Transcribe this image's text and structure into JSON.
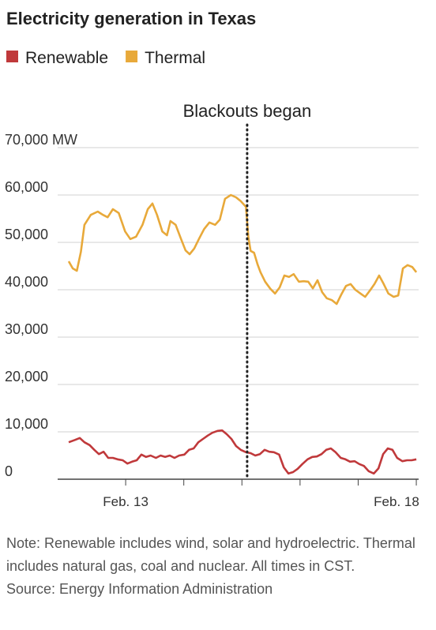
{
  "chart_data": {
    "type": "line",
    "title": "Electricity generation in Texas",
    "note": "Note: Renewable includes wind, solar and hydroelectric. Thermal includes natural gas, coal and nuclear. All times in CST.",
    "source": "Source: Energy Information Administration",
    "annotation": {
      "text": "Blackouts began",
      "x": 15.09
    },
    "xlim": [
      11.83,
      18.04
    ],
    "xticks": [
      {
        "value": 13,
        "label": "Feb. 13"
      },
      {
        "value": 18,
        "label": "Feb. 18"
      }
    ],
    "minor_xticks": [
      14,
      15,
      16,
      17
    ],
    "ylim": [
      0,
      70000
    ],
    "yticks": [
      {
        "value": 0,
        "label": "0"
      },
      {
        "value": 10000,
        "label": "10,000"
      },
      {
        "value": 20000,
        "label": "20,000"
      },
      {
        "value": 30000,
        "label": "30,000"
      },
      {
        "value": 40000,
        "label": "40,000"
      },
      {
        "value": 50000,
        "label": "50,000"
      },
      {
        "value": 60000,
        "label": "60,000"
      },
      {
        "value": 70000,
        "label": "70,000 MW"
      }
    ],
    "grid": true,
    "series": [
      {
        "name": "Renewable",
        "color": "#c0393b",
        "x": [
          12.02,
          12.13,
          12.21,
          12.29,
          12.38,
          12.46,
          12.54,
          12.62,
          12.7,
          12.78,
          12.86,
          12.95,
          13.03,
          13.11,
          13.19,
          13.27,
          13.35,
          13.43,
          13.52,
          13.6,
          13.68,
          13.76,
          13.84,
          13.92,
          14.01,
          14.09,
          14.17,
          14.25,
          14.33,
          14.41,
          14.49,
          14.58,
          14.66,
          14.74,
          14.82,
          14.9,
          14.98,
          15.07,
          15.15,
          15.23,
          15.31,
          15.39,
          15.47,
          15.55,
          15.64,
          15.72,
          15.8,
          15.88,
          15.96,
          16.04,
          16.13,
          16.21,
          16.29,
          16.37,
          16.45,
          16.53,
          16.61,
          16.7,
          16.78,
          16.86,
          16.94,
          17.02,
          17.1,
          17.18,
          17.27,
          17.35,
          17.43,
          17.51,
          17.59,
          17.67,
          17.76,
          17.84,
          17.92,
          18.0
        ],
        "values": [
          7800,
          8300,
          8700,
          7800,
          7200,
          6200,
          5300,
          5800,
          4500,
          4500,
          4200,
          4000,
          3300,
          3700,
          4000,
          5200,
          4700,
          5000,
          4500,
          5000,
          4700,
          5000,
          4500,
          5000,
          5200,
          6200,
          6500,
          7800,
          8500,
          9200,
          9800,
          10200,
          10300,
          9500,
          8500,
          7000,
          6200,
          5700,
          5500,
          5000,
          5300,
          6200,
          5800,
          5700,
          5200,
          2500,
          1200,
          1500,
          2200,
          3200,
          4200,
          4700,
          4800,
          5300,
          6200,
          6500,
          5700,
          4500,
          4200,
          3700,
          3800,
          3200,
          2800,
          1700,
          1200,
          2300,
          5300,
          6500,
          6200,
          4500,
          3800,
          4000,
          4000,
          4200
        ]
      },
      {
        "name": "Thermal",
        "color": "#e8a93a",
        "x": [
          12.02,
          12.09,
          12.16,
          12.23,
          12.29,
          12.4,
          12.52,
          12.61,
          12.69,
          12.78,
          12.88,
          12.99,
          13.08,
          13.18,
          13.29,
          13.38,
          13.46,
          13.54,
          13.63,
          13.71,
          13.77,
          13.86,
          13.95,
          14.03,
          14.1,
          14.18,
          14.26,
          14.35,
          14.44,
          14.54,
          14.62,
          14.71,
          14.81,
          14.9,
          14.98,
          15.07,
          15.11,
          15.15,
          15.21,
          15.27,
          15.32,
          15.4,
          15.49,
          15.57,
          15.65,
          15.73,
          15.81,
          15.89,
          15.98,
          16.06,
          16.14,
          16.22,
          16.3,
          16.38,
          16.46,
          16.55,
          16.63,
          16.71,
          16.79,
          16.87,
          16.95,
          17.04,
          17.12,
          17.2,
          17.28,
          17.36,
          17.44,
          17.52,
          17.61,
          17.69,
          17.77,
          17.85,
          17.93,
          18.0
        ],
        "values": [
          46000,
          44500,
          44000,
          48000,
          53700,
          55800,
          56500,
          55800,
          55300,
          57000,
          56200,
          52300,
          50700,
          51200,
          53700,
          57000,
          58200,
          55800,
          52300,
          51500,
          54500,
          53700,
          50800,
          48300,
          47500,
          48700,
          50700,
          52800,
          54200,
          53700,
          54800,
          59200,
          60000,
          59500,
          58700,
          57500,
          51200,
          48200,
          47800,
          45300,
          43700,
          41700,
          40200,
          39200,
          40500,
          43000,
          42700,
          43300,
          41700,
          41800,
          41700,
          40300,
          42000,
          39500,
          38200,
          37800,
          37000,
          39000,
          40800,
          41200,
          40000,
          39200,
          38500,
          39800,
          41200,
          43000,
          41200,
          39200,
          38500,
          38800,
          44500,
          45200,
          44800,
          43700
        ]
      }
    ]
  }
}
